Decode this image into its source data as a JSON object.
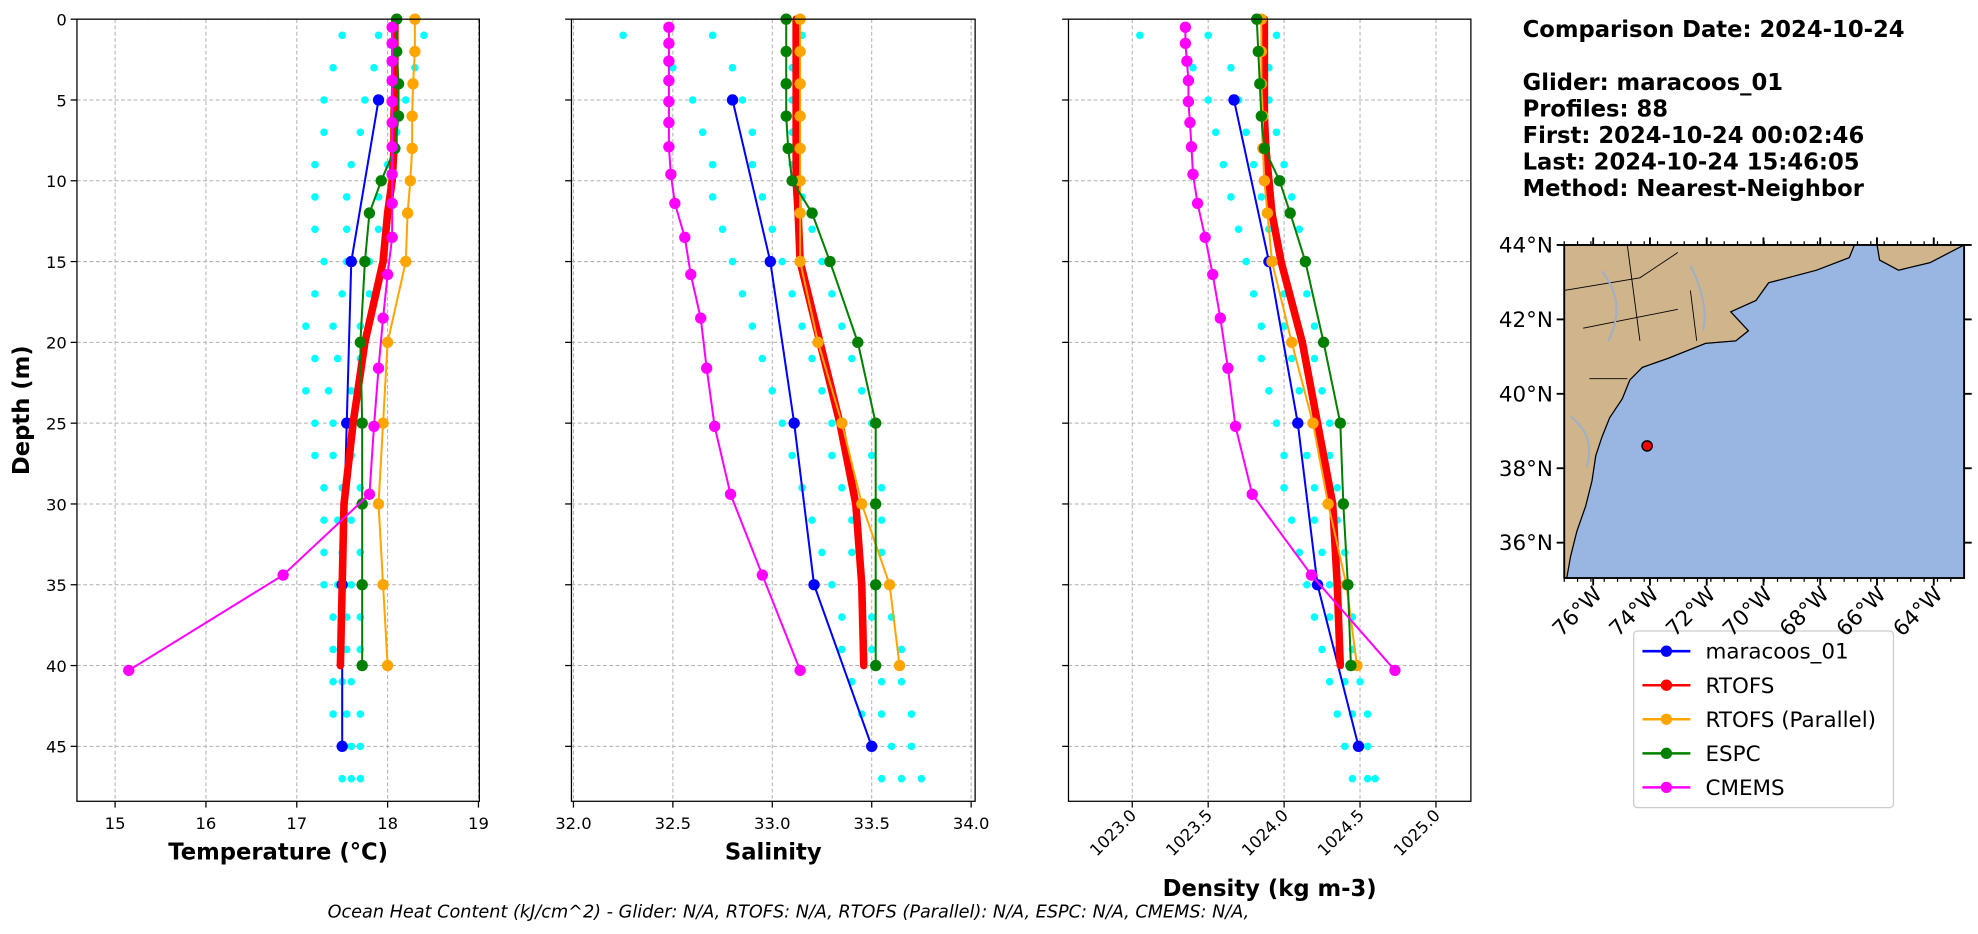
{
  "chart_data": [
    {
      "type": "line",
      "xlabel": "Temperature (°C)",
      "ylabel": "Depth (m)",
      "show_ytick_labels": true,
      "grid": true,
      "xlim": [
        14.58,
        19.01
      ],
      "xticks": [
        15,
        16,
        17,
        18,
        19
      ],
      "ylim": [
        48.4,
        0
      ],
      "yticks": [
        0,
        5,
        10,
        15,
        20,
        25,
        30,
        35,
        40,
        45
      ],
      "scatter": {
        "color": "#00ffff",
        "depth": [
          1,
          1,
          1,
          3,
          3,
          3,
          5,
          5,
          5,
          7,
          7,
          7,
          9,
          9,
          9,
          11,
          11,
          11,
          13,
          13,
          13,
          15,
          15,
          15,
          17,
          17,
          17,
          19,
          19,
          19,
          21,
          21,
          21,
          23,
          23,
          23,
          25,
          25,
          25,
          27,
          27,
          27,
          29,
          29,
          29,
          31,
          31,
          31,
          33,
          33,
          33,
          35,
          35,
          35,
          37,
          37,
          37,
          39,
          39,
          39,
          41,
          41,
          41,
          43,
          43,
          43,
          45,
          45,
          45,
          47,
          47,
          47
        ],
        "values": [
          17.5,
          17.9,
          18.4,
          17.4,
          17.85,
          18.3,
          17.3,
          17.75,
          18.2,
          17.3,
          17.7,
          18.1,
          17.2,
          17.6,
          18.0,
          17.2,
          17.55,
          17.9,
          17.2,
          17.55,
          17.9,
          17.3,
          17.55,
          17.8,
          17.2,
          17.5,
          17.8,
          17.1,
          17.4,
          17.7,
          17.2,
          17.45,
          17.7,
          17.1,
          17.35,
          17.6,
          17.2,
          17.4,
          17.6,
          17.2,
          17.4,
          17.6,
          17.3,
          17.5,
          17.7,
          17.3,
          17.45,
          17.6,
          17.3,
          17.5,
          17.7,
          17.3,
          17.45,
          17.6,
          17.4,
          17.55,
          17.7,
          17.4,
          17.55,
          17.7,
          17.4,
          17.5,
          17.6,
          17.4,
          17.55,
          17.7,
          17.5,
          17.6,
          17.7,
          17.5,
          17.6,
          17.7
        ]
      },
      "series": [
        {
          "depth": [
            5,
            15,
            25,
            35,
            45
          ],
          "values": [
            17.9,
            17.6,
            17.55,
            17.5,
            17.5
          ]
        },
        {
          "depth": [
            0,
            2,
            4,
            6,
            8,
            10,
            12,
            15,
            20,
            25,
            30,
            35,
            40
          ],
          "values": [
            18.08,
            18.08,
            18.08,
            18.07,
            18.07,
            18.05,
            18.0,
            17.95,
            17.75,
            17.62,
            17.52,
            17.5,
            17.48
          ]
        },
        {
          "depth": [
            0,
            2,
            4,
            6,
            8,
            10,
            12,
            15,
            20,
            25,
            30,
            35,
            40
          ],
          "values": [
            18.3,
            18.3,
            18.28,
            18.27,
            18.27,
            18.25,
            18.22,
            18.2,
            18.0,
            17.95,
            17.9,
            17.95,
            18.0
          ]
        },
        {
          "depth": [
            0,
            2,
            4,
            6,
            8,
            10,
            12,
            15,
            20,
            25,
            30,
            35,
            40
          ],
          "values": [
            18.1,
            18.1,
            18.12,
            18.12,
            18.08,
            17.93,
            17.8,
            17.75,
            17.7,
            17.72,
            17.72,
            17.72,
            17.72
          ]
        },
        {
          "depth": [
            0.5,
            1.5,
            2.6,
            3.8,
            5.1,
            6.4,
            7.9,
            9.6,
            11.4,
            13.5,
            15.8,
            18.5,
            21.6,
            25.2,
            29.4,
            34.4,
            40.3
          ],
          "values": [
            18.05,
            18.05,
            18.05,
            18.05,
            18.05,
            18.05,
            18.05,
            18.05,
            18.05,
            18.05,
            18.0,
            17.95,
            17.9,
            17.85,
            17.8,
            16.85,
            15.15
          ]
        }
      ]
    },
    {
      "type": "line",
      "xlabel": "Salinity",
      "show_ytick_labels": false,
      "grid": true,
      "xlim": [
        31.99,
        34.02
      ],
      "xticks": [
        {
          "value": 32,
          "label": "32.0"
        },
        32.5,
        {
          "value": 33,
          "label": "33.0"
        },
        33.5,
        {
          "value": 34,
          "label": "34.0"
        }
      ],
      "ylim": [
        48.4,
        0
      ],
      "yticks": [
        0,
        5,
        10,
        15,
        20,
        25,
        30,
        35,
        40,
        45
      ],
      "scatter": {
        "color": "#00ffff",
        "depth": [
          1,
          1,
          1,
          3,
          3,
          3,
          5,
          5,
          5,
          7,
          7,
          7,
          9,
          9,
          9,
          11,
          11,
          11,
          13,
          13,
          13,
          15,
          15,
          15,
          17,
          17,
          17,
          19,
          19,
          19,
          21,
          21,
          21,
          23,
          23,
          23,
          25,
          25,
          25,
          27,
          27,
          27,
          29,
          29,
          29,
          31,
          31,
          31,
          33,
          33,
          33,
          35,
          35,
          35,
          37,
          37,
          37,
          39,
          39,
          39,
          41,
          41,
          41,
          43,
          43,
          43,
          45,
          45,
          45,
          47,
          47,
          47
        ],
        "values": [
          32.25,
          32.7,
          33.15,
          32.5,
          32.8,
          33.1,
          32.6,
          32.85,
          33.1,
          32.65,
          32.9,
          33.1,
          32.7,
          32.9,
          33.1,
          32.7,
          32.95,
          33.15,
          32.75,
          33.0,
          33.2,
          32.8,
          33.05,
          33.25,
          32.85,
          33.1,
          33.3,
          32.9,
          33.15,
          33.35,
          32.95,
          33.2,
          33.4,
          33.0,
          33.25,
          33.45,
          33.05,
          33.3,
          33.5,
          33.1,
          33.3,
          33.5,
          33.15,
          33.35,
          33.55,
          33.2,
          33.4,
          33.55,
          33.25,
          33.4,
          33.55,
          33.3,
          33.45,
          33.6,
          33.35,
          33.5,
          33.6,
          33.35,
          33.5,
          33.65,
          33.4,
          33.55,
          33.65,
          33.45,
          33.55,
          33.7,
          33.5,
          33.6,
          33.7,
          33.55,
          33.65,
          33.75
        ]
      },
      "series": [
        {
          "depth": [
            5,
            15,
            25,
            35,
            45
          ],
          "values": [
            32.8,
            32.99,
            33.11,
            33.21,
            33.5
          ]
        },
        {
          "depth": [
            0,
            2,
            4,
            6,
            8,
            10,
            12,
            15,
            20,
            25,
            30,
            35,
            40
          ],
          "values": [
            33.12,
            33.12,
            33.12,
            33.12,
            33.12,
            33.12,
            33.13,
            33.14,
            33.24,
            33.34,
            33.42,
            33.45,
            33.46
          ]
        },
        {
          "depth": [
            0,
            2,
            4,
            6,
            8,
            10,
            12,
            15,
            20,
            25,
            30,
            35,
            40
          ],
          "values": [
            33.14,
            33.14,
            33.14,
            33.14,
            33.14,
            33.14,
            33.14,
            33.14,
            33.23,
            33.35,
            33.45,
            33.59,
            33.64
          ]
        },
        {
          "depth": [
            0,
            2,
            4,
            6,
            8,
            10,
            12,
            15,
            20,
            25,
            30,
            35,
            40
          ],
          "values": [
            33.07,
            33.07,
            33.07,
            33.07,
            33.08,
            33.1,
            33.2,
            33.29,
            33.43,
            33.52,
            33.52,
            33.52,
            33.52
          ]
        },
        {
          "depth": [
            0.5,
            1.5,
            2.6,
            3.8,
            5.1,
            6.4,
            7.9,
            9.6,
            11.4,
            13.5,
            15.8,
            18.5,
            21.6,
            25.2,
            29.4,
            34.4,
            40.3
          ],
          "values": [
            32.48,
            32.48,
            32.48,
            32.48,
            32.48,
            32.48,
            32.48,
            32.49,
            32.51,
            32.56,
            32.59,
            32.64,
            32.67,
            32.71,
            32.79,
            32.95,
            33.14
          ]
        }
      ]
    },
    {
      "type": "line",
      "xlabel": "Density (kg m-3)",
      "show_ytick_labels": false,
      "rotate_xtick_labels": true,
      "grid": true,
      "xlim": [
        1022.58,
        1025.23
      ],
      "xticks": [
        {
          "value": 1023,
          "label": "1023.0"
        },
        1023.5,
        {
          "value": 1024,
          "label": "1024.0"
        },
        1024.5,
        {
          "value": 1025,
          "label": "1025.0"
        }
      ],
      "ylim": [
        48.4,
        0
      ],
      "yticks": [
        0,
        5,
        10,
        15,
        20,
        25,
        30,
        35,
        40,
        45
      ],
      "scatter": {
        "color": "#00ffff",
        "depth": [
          1,
          1,
          1,
          3,
          3,
          3,
          5,
          5,
          5,
          7,
          7,
          7,
          9,
          9,
          9,
          11,
          11,
          11,
          13,
          13,
          13,
          15,
          15,
          15,
          17,
          17,
          17,
          19,
          19,
          19,
          21,
          21,
          21,
          23,
          23,
          23,
          25,
          25,
          25,
          27,
          27,
          27,
          29,
          29,
          29,
          31,
          31,
          31,
          33,
          33,
          33,
          35,
          35,
          35,
          37,
          37,
          37,
          39,
          39,
          39,
          41,
          41,
          41,
          43,
          43,
          43,
          45,
          45,
          45,
          47,
          47,
          47
        ],
        "values": [
          1023.05,
          1023.5,
          1023.95,
          1023.4,
          1023.65,
          1023.9,
          1023.5,
          1023.7,
          1023.9,
          1023.55,
          1023.75,
          1023.95,
          1023.6,
          1023.8,
          1024.0,
          1023.65,
          1023.85,
          1024.05,
          1023.7,
          1023.9,
          1024.1,
          1023.75,
          1023.95,
          1024.15,
          1023.8,
          1024.0,
          1024.15,
          1023.85,
          1024.0,
          1024.2,
          1023.85,
          1024.05,
          1024.2,
          1023.9,
          1024.1,
          1024.25,
          1023.95,
          1024.1,
          1024.3,
          1024.0,
          1024.15,
          1024.3,
          1024.0,
          1024.2,
          1024.35,
          1024.05,
          1024.2,
          1024.35,
          1024.1,
          1024.25,
          1024.4,
          1024.15,
          1024.3,
          1024.4,
          1024.2,
          1024.3,
          1024.45,
          1024.25,
          1024.35,
          1024.45,
          1024.3,
          1024.4,
          1024.5,
          1024.35,
          1024.45,
          1024.55,
          1024.4,
          1024.5,
          1024.55,
          1024.45,
          1024.55,
          1024.6
        ]
      },
      "series": [
        {
          "depth": [
            5,
            15,
            25,
            35,
            45
          ],
          "values": [
            1023.67,
            1023.9,
            1024.09,
            1024.22,
            1024.49
          ]
        },
        {
          "depth": [
            0,
            2,
            4,
            6,
            8,
            10,
            12,
            15,
            20,
            25,
            30,
            35,
            40
          ],
          "values": [
            1023.87,
            1023.87,
            1023.87,
            1023.87,
            1023.88,
            1023.9,
            1023.92,
            1023.98,
            1024.12,
            1024.22,
            1024.32,
            1024.35,
            1024.37
          ]
        },
        {
          "depth": [
            0,
            2,
            4,
            6,
            8,
            10,
            12,
            15,
            20,
            25,
            30,
            35,
            40
          ],
          "values": [
            1023.85,
            1023.85,
            1023.85,
            1023.86,
            1023.86,
            1023.87,
            1023.89,
            1023.92,
            1024.05,
            1024.19,
            1024.29,
            1024.41,
            1024.48
          ]
        },
        {
          "depth": [
            0,
            2,
            4,
            6,
            8,
            10,
            12,
            15,
            20,
            25,
            30,
            35,
            40
          ],
          "values": [
            1023.82,
            1023.83,
            1023.84,
            1023.85,
            1023.87,
            1023.97,
            1024.04,
            1024.14,
            1024.26,
            1024.37,
            1024.39,
            1024.42,
            1024.44
          ]
        },
        {
          "depth": [
            0.5,
            1.5,
            2.6,
            3.8,
            5.1,
            6.4,
            7.9,
            9.6,
            11.4,
            13.5,
            15.8,
            18.5,
            21.6,
            25.2,
            29.4,
            34.4,
            40.3
          ],
          "values": [
            1023.35,
            1023.35,
            1023.36,
            1023.37,
            1023.37,
            1023.38,
            1023.39,
            1023.4,
            1023.43,
            1023.48,
            1023.53,
            1023.58,
            1023.63,
            1023.68,
            1023.79,
            1024.18,
            1024.73
          ]
        }
      ]
    },
    {
      "type": "map",
      "xlim": [
        -77.02,
        -62.93
      ],
      "ylim": [
        35.05,
        44
      ],
      "xticks": [
        {
          "value": -76,
          "label": "76°W"
        },
        {
          "value": -74,
          "label": "74°W"
        },
        {
          "value": -72,
          "label": "72°W"
        },
        {
          "value": -70,
          "label": "70°W"
        },
        {
          "value": -68,
          "label": "68°W"
        },
        {
          "value": -66,
          "label": "66°W"
        },
        {
          "value": -64,
          "label": "64°W"
        }
      ],
      "yticks": [
        {
          "value": 44,
          "label": "44°N"
        },
        {
          "value": 42,
          "label": "42°N"
        },
        {
          "value": 40,
          "label": "40°N"
        },
        {
          "value": 38,
          "label": "38°N"
        },
        {
          "value": 36,
          "label": "36°N"
        }
      ],
      "glider": {
        "color": "#ff0000",
        "lon": [
          -74.1
        ],
        "lat": [
          38.6
        ]
      }
    }
  ],
  "legend": {
    "series": [
      {
        "name": "maracoos_01",
        "color": "#0000ff"
      },
      {
        "name": "RTOFS",
        "color": "#ff0000"
      },
      {
        "name": "RTOFS (Parallel)",
        "color": "#ffa500"
      },
      {
        "name": "ESPC",
        "color": "#008000"
      },
      {
        "name": "CMEMS",
        "color": "#ff00ff"
      }
    ]
  },
  "info": {
    "title": "Comparison Date: 2024-10-24",
    "lines": [
      "Glider: maracoos_01",
      "Profiles: 88",
      "First: 2024-10-24 00:02:46",
      "Last: 2024-10-24 15:46:05",
      "Method: Nearest-Neighbor"
    ]
  },
  "footer": "Ocean Heat Content (kJ/cm^2) - Glider: N/A,  RTOFS: N/A,  RTOFS (Parallel): N/A,  ESPC: N/A,  CMEMS: N/A,"
}
